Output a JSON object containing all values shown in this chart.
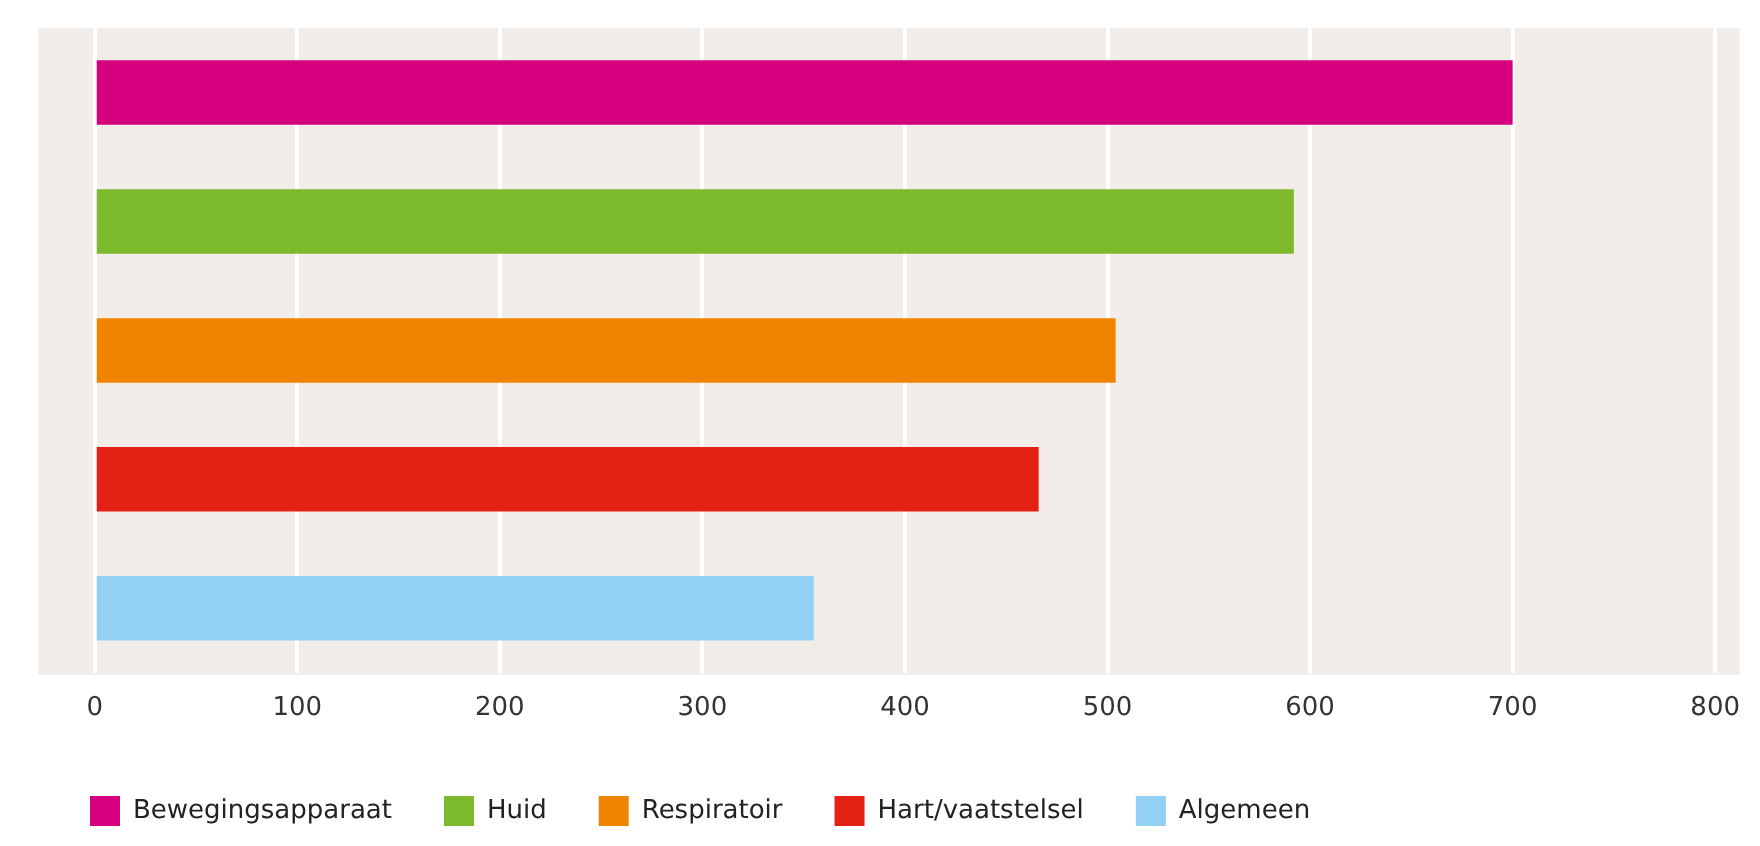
{
  "chart_data": {
    "type": "bar",
    "orientation": "horizontal",
    "categories": [
      null,
      null,
      null,
      null,
      null
    ],
    "series": [
      {
        "name": "Bewegingsapparaat",
        "color": "#d6007f",
        "values": [
          700,
          null,
          null,
          null,
          null
        ]
      },
      {
        "name": "Huid",
        "color": "#7cb92c",
        "values": [
          null,
          592,
          null,
          null,
          null
        ]
      },
      {
        "name": "Respiratoir",
        "color": "#f08300",
        "values": [
          null,
          null,
          504,
          null,
          null
        ]
      },
      {
        "name": "Hart/vaatstelsel",
        "color": "#e42115",
        "values": [
          null,
          null,
          null,
          466,
          null
        ]
      },
      {
        "name": "Algemeen",
        "color": "#92d1f3",
        "values": [
          null,
          null,
          null,
          null,
          355
        ]
      }
    ],
    "xlim": [
      -28,
      812
    ],
    "xticks": [
      0,
      100,
      200,
      300,
      400,
      500,
      600,
      700,
      800
    ],
    "grid": "x",
    "legend": "bottom left",
    "tick_labels": "x"
  }
}
